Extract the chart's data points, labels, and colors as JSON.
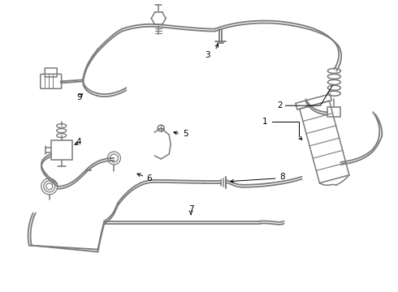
{
  "bg_color": "#ffffff",
  "line_color": "#7a7a7a",
  "label_color": "#000000",
  "label_fontsize": 7.5,
  "fig_width": 4.9,
  "fig_height": 3.6,
  "dpi": 100
}
